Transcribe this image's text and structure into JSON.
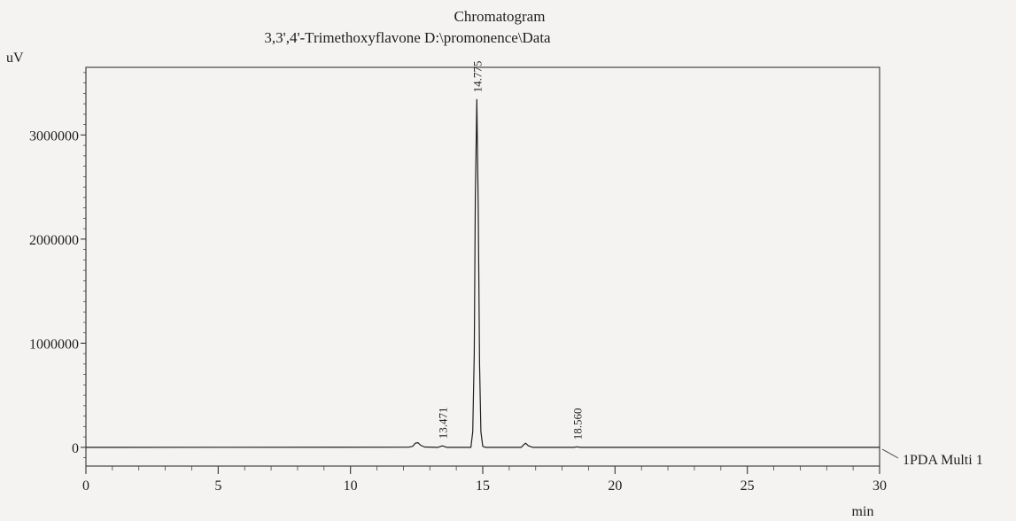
{
  "chart_data": {
    "type": "line",
    "title": "Chromatogram",
    "subtitle": "3,3',4'-Trimethoxyflavone D:\\promonence\\Data",
    "xlabel": "min",
    "ylabel": "uV",
    "xlim": [
      0,
      30
    ],
    "ylim": [
      -180000,
      3650000
    ],
    "x_ticks": [
      0,
      5,
      10,
      15,
      20,
      25,
      30
    ],
    "y_ticks": [
      0,
      1000000,
      2000000,
      3000000
    ],
    "grid": false,
    "legend": "right",
    "series": [
      {
        "name": "1PDA Multi 1",
        "color": "#1e1e1e",
        "points": [
          [
            0,
            0
          ],
          [
            12.2,
            1000
          ],
          [
            12.35,
            10000
          ],
          [
            12.45,
            40000
          ],
          [
            12.55,
            45000
          ],
          [
            12.65,
            20000
          ],
          [
            12.8,
            3000
          ],
          [
            13.3,
            0
          ],
          [
            13.47,
            14000
          ],
          [
            13.65,
            0
          ],
          [
            14.55,
            0
          ],
          [
            14.62,
            150000
          ],
          [
            14.68,
            900000
          ],
          [
            14.72,
            2400000
          ],
          [
            14.775,
            3340000
          ],
          [
            14.83,
            2300000
          ],
          [
            14.88,
            800000
          ],
          [
            14.93,
            150000
          ],
          [
            15.0,
            10000
          ],
          [
            15.1,
            0
          ],
          [
            16.45,
            0
          ],
          [
            16.55,
            25000
          ],
          [
            16.62,
            40000
          ],
          [
            16.72,
            15000
          ],
          [
            16.9,
            0
          ],
          [
            18.45,
            0
          ],
          [
            18.56,
            5000
          ],
          [
            18.7,
            0
          ],
          [
            30,
            0
          ]
        ]
      }
    ],
    "peak_labels": [
      {
        "x": 13.471,
        "y": 14000,
        "label": "13.471"
      },
      {
        "x": 14.775,
        "y": 3340000,
        "label": "14.775"
      },
      {
        "x": 18.56,
        "y": 5000,
        "label": "18.560"
      }
    ]
  }
}
